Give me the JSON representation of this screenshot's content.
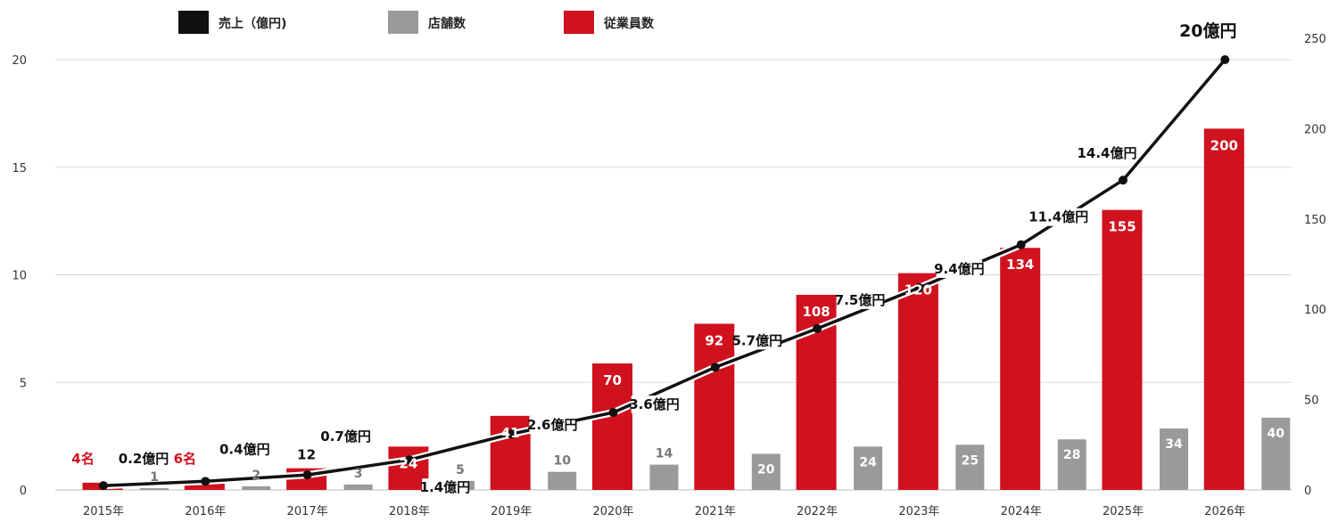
{
  "chart_data": {
    "type": "bar",
    "categories": [
      "2015年",
      "2016年",
      "2017年",
      "2018年",
      "2019年",
      "2020年",
      "2021年",
      "2022年",
      "2023年",
      "2024年",
      "2025年",
      "2026年"
    ],
    "legend": [
      {
        "key": "sales",
        "label": "売上（億円)",
        "color": "#111111"
      },
      {
        "key": "stores",
        "label": "店舗数",
        "color": "#9a9a9a"
      },
      {
        "key": "employees",
        "label": "従業員数",
        "color": "#d0111e"
      }
    ],
    "series": [
      {
        "name": "売上（億円)",
        "type": "line",
        "axis": "left",
        "values": [
          0.2,
          0.4,
          0.7,
          1.4,
          2.6,
          3.6,
          5.7,
          7.5,
          9.4,
          11.4,
          14.4,
          20
        ],
        "labels": [
          "0.2億円",
          "0.4億円",
          "0.7億円",
          "1.4億円",
          "2.6億円",
          "3.6億円",
          "5.7億円",
          "7.5億円",
          "9.4億円",
          "11.4億円",
          "14.4億円",
          "20億円"
        ]
      },
      {
        "name": "店舗数",
        "type": "bar",
        "axis": "right",
        "values": [
          1,
          2,
          3,
          5,
          10,
          14,
          20,
          24,
          25,
          28,
          34,
          40
        ],
        "labels": [
          "1",
          "2",
          "3",
          "5",
          "10",
          "14",
          "20",
          "24",
          "25",
          "28",
          "34",
          "40"
        ]
      },
      {
        "name": "従業員数",
        "type": "bar",
        "axis": "right",
        "values": [
          4,
          6,
          12,
          24,
          41,
          70,
          92,
          108,
          120,
          134,
          155,
          200
        ],
        "labels": [
          "4名",
          "6名",
          "12",
          "24",
          "41",
          "70",
          "92",
          "108",
          "120",
          "134",
          "155",
          "200"
        ]
      }
    ],
    "y_left": {
      "min": 0,
      "max": 20,
      "ticks": [
        "0",
        "5",
        "10",
        "15",
        "20"
      ]
    },
    "y_right": {
      "min": 0,
      "max": 250,
      "ticks": [
        "0",
        "50",
        "100",
        "150",
        "200",
        "250"
      ]
    },
    "grid": true,
    "legend_position": "top-left",
    "colors": {
      "sales": "#111111",
      "stores": "#9a9a9a",
      "employees": "#d0111e",
      "grid": "#d9d9d9"
    }
  }
}
